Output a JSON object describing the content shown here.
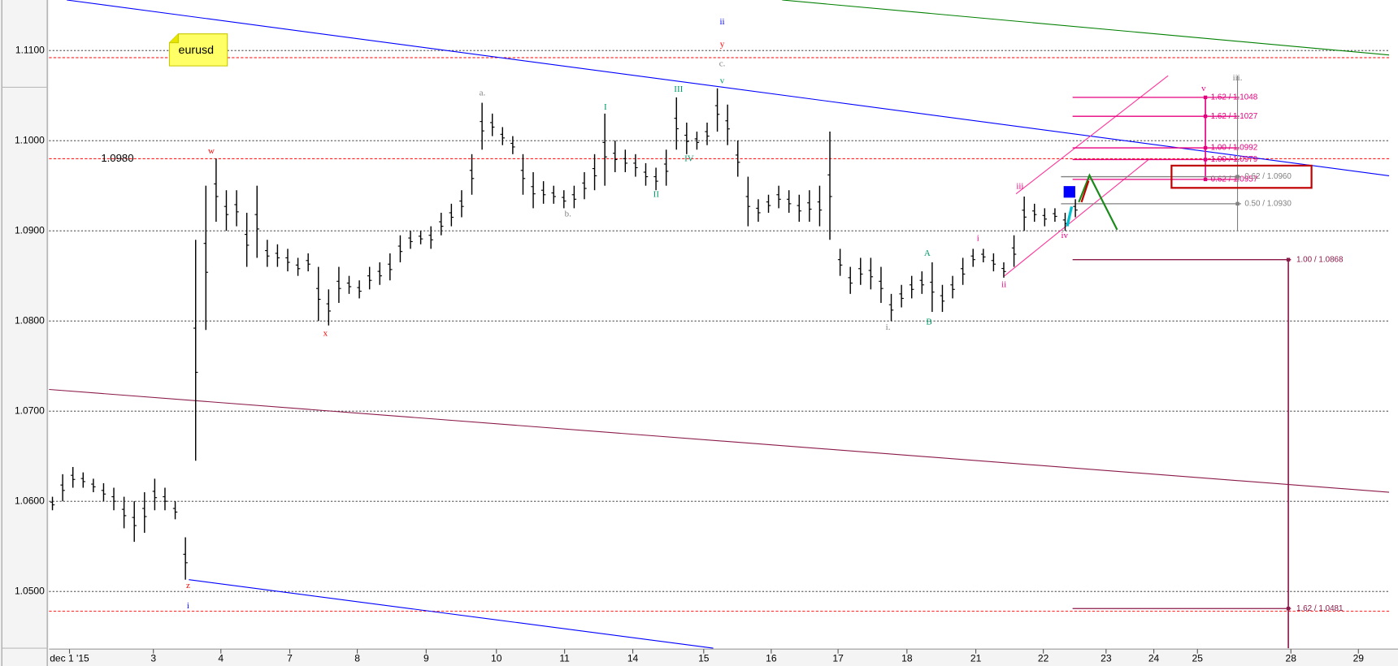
{
  "chart_data": {
    "type": "ohlc",
    "title": "eurusd",
    "ylim": [
      1.0437,
      1.1156
    ],
    "yticks": [
      {
        "value": 1.11,
        "label": "1.1100"
      },
      {
        "value": 1.1,
        "label": "1.1000"
      },
      {
        "value": 1.09,
        "label": "1.0900"
      },
      {
        "value": 1.08,
        "label": "1.0800"
      },
      {
        "value": 1.07,
        "label": "1.0700"
      },
      {
        "value": 1.06,
        "label": "1.0600"
      },
      {
        "value": 1.05,
        "label": "1.0500"
      }
    ],
    "grid": true,
    "xlim": [
      0,
      19.65
    ],
    "xticks": [
      {
        "value": 0.3,
        "label": "dec 1 '15"
      },
      {
        "value": 1.53,
        "label": "3"
      },
      {
        "value": 2.52,
        "label": "4"
      },
      {
        "value": 3.53,
        "label": "7"
      },
      {
        "value": 4.52,
        "label": "8"
      },
      {
        "value": 5.53,
        "label": "9"
      },
      {
        "value": 6.56,
        "label": "10"
      },
      {
        "value": 7.56,
        "label": "11"
      },
      {
        "value": 8.56,
        "label": "14"
      },
      {
        "value": 9.6,
        "label": "15"
      },
      {
        "value": 10.59,
        "label": "16"
      },
      {
        "value": 11.57,
        "label": "17"
      },
      {
        "value": 12.58,
        "label": "18"
      },
      {
        "value": 13.59,
        "label": "21"
      },
      {
        "value": 14.58,
        "label": "22"
      },
      {
        "value": 15.5,
        "label": "23"
      },
      {
        "value": 16.2,
        "label": "24"
      },
      {
        "value": 16.84,
        "label": "25"
      },
      {
        "value": 18.21,
        "label": "28"
      },
      {
        "value": 19.2,
        "label": "29"
      }
    ],
    "color": "#000000",
    "x": [
      0.05,
      0.2,
      0.35,
      0.5,
      0.65,
      0.8,
      0.95,
      1.1,
      1.25,
      1.4,
      1.55,
      1.7,
      1.85,
      2,
      2.15,
      2.3,
      2.45,
      2.6,
      2.75,
      2.9,
      3.05,
      3.2,
      3.35,
      3.5,
      3.65,
      3.8,
      3.95,
      4.1,
      4.25,
      4.4,
      4.55,
      4.7,
      4.85,
      5,
      5.15,
      5.3,
      5.45,
      5.6,
      5.75,
      5.9,
      6.05,
      6.2,
      6.35,
      6.5,
      6.65,
      6.8,
      6.95,
      7.1,
      7.25,
      7.4,
      7.55,
      7.7,
      7.85,
      8,
      8.15,
      8.3,
      8.45,
      8.6,
      8.75,
      8.9,
      9.05,
      9.2,
      9.35,
      9.5,
      9.65,
      9.8,
      9.95,
      10.1,
      10.25,
      10.4,
      10.55,
      10.7,
      10.85,
      11,
      11.15,
      11.3,
      11.45,
      11.6,
      11.75,
      11.9,
      12.05,
      12.2,
      12.35,
      12.5,
      12.65,
      12.8,
      12.95,
      13.1,
      13.25,
      13.4,
      13.55,
      13.7,
      13.85,
      14,
      14.15,
      14.3,
      14.45,
      14.6,
      14.75,
      14.9,
      15.05
    ],
    "high": [
      1.0605,
      1.063,
      1.0638,
      1.0632,
      1.0625,
      1.062,
      1.0615,
      1.0605,
      1.06,
      1.061,
      1.0625,
      1.0615,
      1.06,
      1.056,
      1.089,
      1.095,
      1.098,
      1.0945,
      1.0945,
      1.092,
      1.095,
      1.089,
      1.0885,
      1.088,
      1.087,
      1.0875,
      1.086,
      1.0835,
      1.086,
      1.085,
      1.0845,
      1.086,
      1.0865,
      1.0875,
      1.0895,
      1.09,
      1.09,
      1.0905,
      1.092,
      1.093,
      1.0945,
      1.0985,
      1.1042,
      1.103,
      1.1015,
      1.1005,
      1.0985,
      1.0965,
      1.0955,
      1.095,
      1.0945,
      1.095,
      1.0965,
      1.0985,
      1.103,
      1.1,
      1.099,
      1.0985,
      1.0975,
      1.097,
      1.099,
      1.1048,
      1.102,
      1.101,
      1.102,
      1.1058,
      1.104,
      1.1,
      1.096,
      1.0935,
      1.094,
      1.095,
      1.0945,
      1.094,
      1.0945,
      1.095,
      1.101,
      1.088,
      1.086,
      1.087,
      1.087,
      1.086,
      1.083,
      1.084,
      1.085,
      1.0855,
      1.0865,
      1.084,
      1.085,
      1.087,
      1.088,
      1.088,
      1.0875,
      1.0865,
      1.0895,
      1.0938,
      1.093,
      1.0925,
      1.0925,
      1.092,
      1.0935
    ],
    "low": [
      1.059,
      1.06,
      1.0615,
      1.0615,
      1.061,
      1.06,
      1.059,
      1.057,
      1.0555,
      1.0565,
      1.059,
      1.059,
      1.058,
      1.0513,
      1.0645,
      1.079,
      1.091,
      1.09,
      1.0905,
      1.086,
      1.087,
      1.086,
      1.086,
      1.0855,
      1.085,
      1.0855,
      1.08,
      1.0795,
      1.082,
      1.083,
      1.0825,
      1.0835,
      1.084,
      1.0845,
      1.0865,
      1.088,
      1.0885,
      1.088,
      1.0895,
      1.0905,
      1.0915,
      1.094,
      1.099,
      1.1005,
      1.0995,
      1.0985,
      1.094,
      1.0925,
      1.093,
      1.093,
      1.0925,
      1.0925,
      1.0935,
      1.0945,
      1.095,
      1.0965,
      1.0965,
      1.096,
      1.095,
      1.0945,
      1.095,
      1.099,
      1.0985,
      1.099,
      1.0995,
      1.101,
      1.0995,
      1.096,
      1.0905,
      1.091,
      1.092,
      1.0925,
      1.092,
      1.091,
      1.091,
      1.0905,
      1.089,
      1.085,
      1.083,
      1.084,
      1.0835,
      1.082,
      1.08,
      1.0815,
      1.0825,
      1.083,
      1.081,
      1.081,
      1.0825,
      1.084,
      1.086,
      1.0865,
      1.0855,
      1.0848,
      1.086,
      1.09,
      1.091,
      1.0905,
      1.091,
      1.09,
      1.0915
    ],
    "reference_lines": [
      {
        "value": 1.1092
      },
      {
        "value": 1.098,
        "label": "1.0980"
      },
      {
        "value": 1.0478
      }
    ],
    "reference_color": "#ff0000",
    "trendlines": [
      {
        "color": "#0000ff",
        "x": [
          0.26,
          19.65
        ],
        "y": [
          1.1156,
          1.0961
        ]
      },
      {
        "color": "#0000ff",
        "x": [
          2.05,
          9.74
        ],
        "y": [
          1.0513,
          1.0437
        ]
      },
      {
        "color": "#008000",
        "x": [
          10.75,
          19.65
        ],
        "y": [
          1.1156,
          1.1095
        ]
      },
      {
        "color": "#8b1a4a",
        "x": [
          0,
          19.65
        ],
        "y": [
          1.0724,
          1.061
        ]
      },
      {
        "color": "#ff3399",
        "x": [
          14.18,
          16.41
        ],
        "y": [
          1.0941,
          1.1072
        ]
      },
      {
        "color": "#ff3399",
        "x": [
          14.01,
          16.14
        ],
        "y": [
          1.085,
          1.098
        ]
      }
    ],
    "fib_levels": [
      {
        "color": "#e6007e",
        "values": [
          1.1048,
          1.1027,
          1.0992,
          1.0979,
          1.0957
        ],
        "value_labels": [
          "1.62 / 1.1048",
          "1.62 / 1.1027",
          "1.00 / 1.0992",
          "1.00 / 1.0979",
          "0.62 / 1.0957"
        ]
      },
      {
        "color": "#808080",
        "values": [
          1.096,
          1.093
        ],
        "value_labels": [
          "0.62 / 1.0960",
          "0.50 / 1.0930"
        ]
      },
      {
        "color": "#8b1a4a",
        "values": [
          1.0868,
          1.0481
        ],
        "value_labels": [
          "1.00 / 1.0868",
          "1.62 / 1.0481"
        ]
      }
    ],
    "wave_labels": [
      {
        "text": "ii",
        "color": "#0000ff"
      },
      {
        "text": "y",
        "color": "#ff0000"
      },
      {
        "text": "c.",
        "color": "#808080"
      },
      {
        "text": "v",
        "color": "#009966"
      },
      {
        "text": "III",
        "color": "#009966"
      },
      {
        "text": "I",
        "color": "#009966"
      },
      {
        "text": "a.",
        "color": "#808080"
      },
      {
        "text": "w",
        "color": "#ff0000"
      },
      {
        "text": "b.",
        "color": "#808080"
      },
      {
        "text": "II",
        "color": "#009966"
      },
      {
        "text": "IV",
        "color": "#009966"
      },
      {
        "text": "x",
        "color": "#ff0000"
      },
      {
        "text": "i.",
        "color": "#808080"
      },
      {
        "text": "A",
        "color": "#009966"
      },
      {
        "text": "B",
        "color": "#009966"
      },
      {
        "text": "i",
        "color": "#e6007e"
      },
      {
        "text": "ii",
        "color": "#e6007e"
      },
      {
        "text": "iii",
        "color": "#e6007e"
      },
      {
        "text": "iv",
        "color": "#e6007e"
      },
      {
        "text": "v",
        "color": "#e6007e"
      },
      {
        "text": "iii.",
        "color": "#808080"
      },
      {
        "text": "z",
        "color": "#ff0000"
      },
      {
        "text": "i",
        "color": "#0000ff"
      }
    ]
  }
}
